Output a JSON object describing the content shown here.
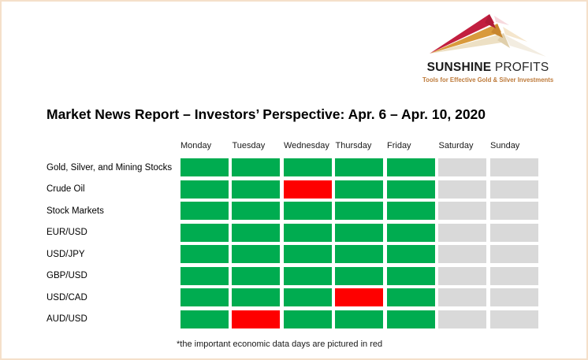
{
  "page_title": "Market News Report – Investors’ Perspective: Apr. 6 – Apr. 10, 2020",
  "logo": {
    "brand_primary": "SUNSHINE",
    "brand_secondary": "PROFITS",
    "tagline": "Tools for Effective Gold & Silver Investments"
  },
  "footnote": "*the important economic data days are pictured in red",
  "accent_colors": {
    "page_border": "#f5e0ca",
    "tagline_orange": "#be7b3b",
    "ray_red": "#c21f3f",
    "ray_gold": "#d99a3c",
    "ray_beige": "#ede0c4"
  },
  "chart_data": {
    "type": "heatmap",
    "title": "Market News Report – Investors’ Perspective: Apr. 6 – Apr. 10, 2020",
    "columns": [
      "Monday",
      "Tuesday",
      "Wednesday",
      "Thursday",
      "Friday",
      "Saturday",
      "Sunday"
    ],
    "rows": [
      "Gold, Silver, and Mining Stocks",
      "Crude Oil",
      "Stock Markets",
      "EUR/USD",
      "USD/JPY",
      "GBP/USD",
      "USD/CAD",
      "AUD/USD"
    ],
    "cells": [
      [
        "green",
        "green",
        "green",
        "green",
        "green",
        "gray",
        "gray"
      ],
      [
        "green",
        "green",
        "red",
        "green",
        "green",
        "gray",
        "gray"
      ],
      [
        "green",
        "green",
        "green",
        "green",
        "green",
        "gray",
        "gray"
      ],
      [
        "green",
        "green",
        "green",
        "green",
        "green",
        "gray",
        "gray"
      ],
      [
        "green",
        "green",
        "green",
        "green",
        "green",
        "gray",
        "gray"
      ],
      [
        "green",
        "green",
        "green",
        "green",
        "green",
        "gray",
        "gray"
      ],
      [
        "green",
        "green",
        "green",
        "red",
        "green",
        "gray",
        "gray"
      ],
      [
        "green",
        "red",
        "green",
        "green",
        "green",
        "gray",
        "gray"
      ]
    ],
    "colors": {
      "green": "#00ac50",
      "red": "#fe0000",
      "gray": "#d9d9d9"
    },
    "legend_note": "*the important economic data days are pictured in red",
    "legend_position": "bottom",
    "grid": "off"
  }
}
